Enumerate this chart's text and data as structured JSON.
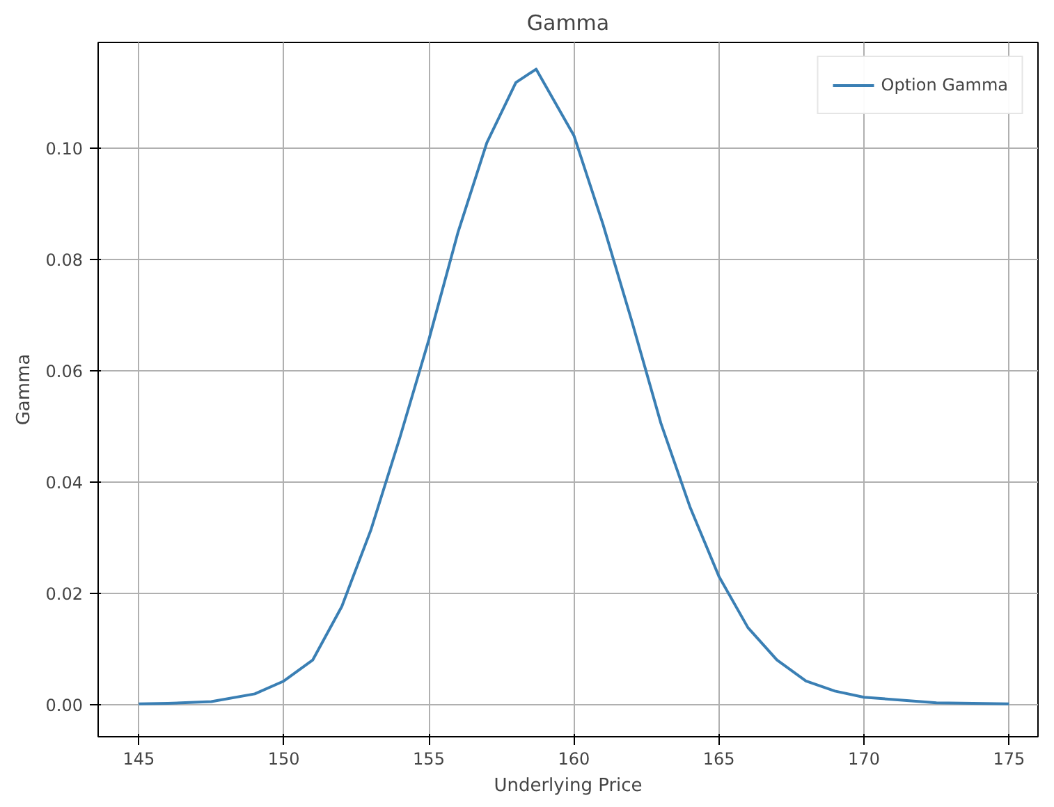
{
  "chart_data": {
    "type": "line",
    "title": "Gamma",
    "xlabel": "Underlying Price",
    "ylabel": "Gamma",
    "x": [
      145,
      146,
      147.5,
      149,
      150,
      151,
      152,
      153,
      154,
      155,
      156,
      157,
      158,
      158.7,
      160,
      161,
      162,
      163,
      164,
      165,
      166,
      167,
      168,
      169,
      170,
      172.5,
      175
    ],
    "series": [
      {
        "name": "Option Gamma",
        "color": "#3a7fb4",
        "values": [
          0.0002,
          0.0003,
          0.0006,
          0.002,
          0.0043,
          0.0081,
          0.0177,
          0.0314,
          0.048,
          0.0656,
          0.0848,
          0.101,
          0.1118,
          0.1142,
          0.1023,
          0.0864,
          0.0689,
          0.0506,
          0.0356,
          0.0231,
          0.0139,
          0.0081,
          0.0043,
          0.0025,
          0.0014,
          0.0004,
          0.0002
        ]
      }
    ],
    "xlim": [
      143.6,
      176.0
    ],
    "ylim": [
      -0.0057,
      0.119
    ],
    "xticks": [
      145,
      150,
      155,
      160,
      165,
      170,
      175
    ],
    "yticks": [
      {
        "value": 0,
        "label": "0.00"
      },
      {
        "value": 0.02,
        "label": "0.02"
      },
      {
        "value": 0.04,
        "label": "0.04"
      },
      {
        "value": 0.06,
        "label": "0.06"
      },
      {
        "value": 0.08,
        "label": "0.08"
      },
      {
        "value": 0.1,
        "label": "0.10"
      }
    ],
    "grid": true,
    "legend": "top right",
    "marker": "none",
    "line_style": "solid"
  }
}
